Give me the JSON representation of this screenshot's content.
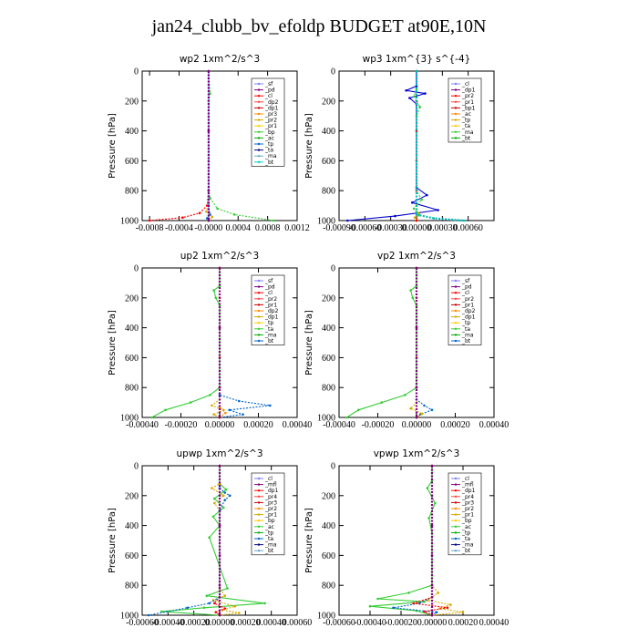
{
  "title": "jan24_clubb_bv_efoldp  BUDGET at90E,10N",
  "chart_data": [
    {
      "type": "line",
      "title": "wp2   1xm^2/s^3",
      "ylabel": "Pressure [hPa]",
      "xlim": [
        -0.0009,
        0.0012
      ],
      "ylim": [
        1000,
        0
      ],
      "xticks": [
        -0.0008,
        -0.0004,
        0.0,
        0.0004,
        0.0008,
        0.0012
      ],
      "xtick_labels": [
        "-0.0008",
        "-0.0004",
        "-0.0000",
        "0.0004",
        "0.0008",
        "0.0012"
      ],
      "yticks": [
        0,
        200,
        400,
        600,
        800,
        1000
      ],
      "legend": [
        "_sf",
        "_pd",
        "_cl",
        "_dp2",
        "_dp1",
        "_pr3",
        "_pr2",
        "_pr1",
        "_bp",
        "_ac",
        "_tp",
        "_ta",
        "_ma",
        "_bt"
      ],
      "series": [
        {
          "color": "#7f7fff",
          "x": [
            0,
            0,
            0,
            0,
            0,
            0
          ],
          "y": [
            0,
            200,
            400,
            600,
            800,
            1000
          ]
        },
        {
          "color": "#ff0000",
          "x": [
            0,
            0,
            -2e-05,
            -0.00012,
            -0.00035,
            -0.0008
          ],
          "y": [
            0,
            800,
            900,
            950,
            980,
            1000
          ]
        },
        {
          "color": "#33cc33",
          "x": [
            0,
            2e-05,
            0,
            0,
            2e-05,
            0.00012,
            0.00035,
            0.00088
          ],
          "y": [
            0,
            150,
            200,
            800,
            850,
            920,
            960,
            1000
          ]
        },
        {
          "color": "#d4aa00",
          "x": [
            0,
            0,
            -3e-05,
            5e-05,
            0
          ],
          "y": [
            0,
            880,
            940,
            975,
            1000
          ]
        },
        {
          "color": "#0066cc",
          "x": [
            0,
            0,
            2e-05,
            -2e-05,
            0
          ],
          "y": [
            0,
            900,
            960,
            985,
            1000
          ]
        },
        {
          "color": "#800080",
          "x": [
            0,
            0,
            0,
            0
          ],
          "y": [
            0,
            400,
            800,
            1000
          ]
        }
      ]
    },
    {
      "type": "line",
      "title": "wp3   1xm^{3} s^{-4}",
      "ylabel": "Pressure [hPa]",
      "xlim": [
        -0.0009,
        0.0009
      ],
      "ylim": [
        1000,
        0
      ],
      "xticks": [
        -0.0009,
        -0.0006,
        -0.0003,
        0.0,
        0.0003,
        0.0006
      ],
      "xtick_labels": [
        "-0.00090",
        "-0.00060",
        "-0.00030",
        "0.00000",
        "0.00030",
        "0.00060"
      ],
      "yticks": [
        0,
        200,
        400,
        600,
        800,
        1000
      ],
      "legend": [
        "_cl",
        "_dp1",
        "_pr2",
        "_pr1",
        "_bp1",
        "_ac",
        "_tp",
        "_ta",
        "_ma",
        "_bt"
      ],
      "series": [
        {
          "color": "#0000cc",
          "x": [
            0,
            0,
            -0.00012,
            0.0001,
            -8e-05,
            0,
            0,
            0.00012,
            -5e-05,
            0.00025,
            -0.00025,
            -0.0008
          ],
          "y": [
            0,
            100,
            130,
            150,
            180,
            220,
            780,
            830,
            880,
            930,
            970,
            1000
          ]
        },
        {
          "color": "#33cc33",
          "x": [
            0,
            0,
            -3e-05,
            4e-05,
            0,
            0,
            6e-05,
            -3e-05,
            3e-05,
            0
          ],
          "y": [
            0,
            120,
            170,
            240,
            300,
            800,
            860,
            920,
            960,
            1000
          ]
        },
        {
          "color": "#d4aa00",
          "x": [
            0,
            0,
            2e-05,
            -2e-05,
            0
          ],
          "y": [
            0,
            900,
            950,
            980,
            1000
          ]
        },
        {
          "color": "#ff0000",
          "x": [
            0,
            0,
            0,
            0,
            0,
            0
          ],
          "y": [
            0,
            200,
            400,
            600,
            800,
            1000
          ]
        },
        {
          "color": "#00bbbb",
          "x": [
            0,
            0,
            0.0002,
            0.00055
          ],
          "y": [
            0,
            960,
            985,
            1000
          ]
        }
      ]
    },
    {
      "type": "line",
      "title": "up2   1xm^2/s^3",
      "ylabel": "Pressure [hPa]",
      "xlim": [
        -0.0004,
        0.0004
      ],
      "ylim": [
        1000,
        0
      ],
      "xticks": [
        -0.0004,
        -0.0002,
        0.0,
        0.0002,
        0.0004
      ],
      "xtick_labels": [
        "-0.00040",
        "-0.00020",
        "0.00000",
        "0.00020",
        "0.00040"
      ],
      "yticks": [
        0,
        200,
        400,
        600,
        800,
        1000
      ],
      "legend": [
        "_sf",
        "_pd",
        "_cl",
        "_pr2",
        "_pr1",
        "_dp2",
        "_dp1",
        "_tp",
        "_ta",
        "_ma",
        "_bt"
      ],
      "series": [
        {
          "color": "#33cc33",
          "x": [
            0,
            0,
            -3e-05,
            -2e-05,
            0,
            0,
            -5e-05,
            -0.00015,
            -0.00028,
            -0.00035
          ],
          "y": [
            0,
            120,
            150,
            200,
            250,
            800,
            850,
            900,
            950,
            1000
          ]
        },
        {
          "color": "#0066cc",
          "x": [
            0,
            0,
            0.0001,
            0.00026,
            5e-05,
            0.00012,
            0
          ],
          "y": [
            0,
            850,
            890,
            920,
            950,
            980,
            1000
          ]
        },
        {
          "color": "#d4aa00",
          "x": [
            0,
            0,
            -4e-05,
            2e-05,
            -3e-05,
            0
          ],
          "y": [
            0,
            880,
            920,
            950,
            980,
            1000
          ]
        },
        {
          "color": "#ff8800",
          "x": [
            0,
            0,
            3e-05,
            0
          ],
          "y": [
            0,
            930,
            970,
            1000
          ]
        },
        {
          "color": "#ff0000",
          "x": [
            0,
            0,
            0,
            0,
            0,
            0
          ],
          "y": [
            0,
            200,
            400,
            600,
            800,
            1000
          ]
        },
        {
          "color": "#800080",
          "x": [
            0,
            0,
            0,
            0
          ],
          "y": [
            0,
            400,
            800,
            1000
          ]
        }
      ]
    },
    {
      "type": "line",
      "title": "vp2   1xm^2/s^3",
      "ylabel": "Pressure [hPa]",
      "xlim": [
        -0.0004,
        0.0004
      ],
      "ylim": [
        1000,
        0
      ],
      "xticks": [
        -0.0004,
        -0.0002,
        0.0,
        0.0002,
        0.0004
      ],
      "xtick_labels": [
        "-0.00040",
        "-0.00020",
        "0.00000",
        "0.00020",
        "0.00040"
      ],
      "yticks": [
        0,
        200,
        400,
        600,
        800,
        1000
      ],
      "legend": [
        "_sf",
        "_pd",
        "_cl",
        "_pr2",
        "_pr1",
        "_dp2",
        "_dp1",
        "_tp",
        "_ta",
        "_ma",
        "_bt"
      ],
      "series": [
        {
          "color": "#33cc33",
          "x": [
            0,
            0,
            -3e-05,
            -2e-05,
            0,
            0,
            -6e-05,
            -0.00018,
            -0.0003,
            -0.00036
          ],
          "y": [
            0,
            120,
            150,
            200,
            250,
            800,
            850,
            900,
            950,
            1000
          ]
        },
        {
          "color": "#0066cc",
          "x": [
            0,
            0,
            4e-05,
            8e-05,
            2e-05,
            0
          ],
          "y": [
            0,
            880,
            920,
            950,
            980,
            1000
          ]
        },
        {
          "color": "#d4aa00",
          "x": [
            0,
            0,
            -3e-05,
            3e-05,
            0
          ],
          "y": [
            0,
            900,
            940,
            975,
            1000
          ]
        },
        {
          "color": "#ff0000",
          "x": [
            0,
            0,
            0,
            0,
            0,
            0
          ],
          "y": [
            0,
            200,
            400,
            600,
            800,
            1000
          ]
        },
        {
          "color": "#800080",
          "x": [
            0,
            0,
            0,
            0
          ],
          "y": [
            0,
            400,
            800,
            1000
          ]
        }
      ]
    },
    {
      "type": "line",
      "title": "upwp   1xm^2/s^3",
      "ylabel": "Pressure [hPa]",
      "xlim": [
        -0.0006,
        0.0006
      ],
      "ylim": [
        1000,
        0
      ],
      "xticks": [
        -0.0006,
        -0.0004,
        -0.0002,
        0.0,
        0.0002,
        0.0004,
        0.0006
      ],
      "xtick_labels": [
        "-0.00060",
        "-0.00040",
        "-0.00020",
        "0.00000",
        "0.00020",
        "0.00040",
        "0.00060"
      ],
      "yticks": [
        0,
        200,
        400,
        600,
        800,
        1000
      ],
      "legend": [
        "_cl",
        "_mfl",
        "_dp1",
        "_pr4",
        "_pr3",
        "_pr2",
        "_pr1",
        "_bp",
        "_ac",
        "_tp",
        "_ta",
        "_ma",
        "_bt"
      ],
      "series": [
        {
          "color": "#33cc33",
          "x": [
            0,
            0,
            5e-05,
            -4e-05,
            3e-05,
            -5e-05,
            0,
            -8e-05,
            6e-05,
            -0.0001,
            0.00035,
            -0.00012,
            -0.00045,
            0
          ],
          "y": [
            0,
            120,
            160,
            220,
            280,
            340,
            400,
            480,
            820,
            870,
            920,
            950,
            975,
            1000
          ]
        },
        {
          "color": "#d4aa00",
          "x": [
            0,
            0,
            -6e-05,
            3e-05,
            -4e-05,
            0,
            0,
            4e-05,
            -5e-05,
            0.00012,
            2e-05,
            0.00015,
            0
          ],
          "y": [
            0,
            120,
            150,
            200,
            250,
            300,
            820,
            870,
            900,
            940,
            965,
            985,
            1000
          ]
        },
        {
          "color": "#0066cc",
          "x": [
            0,
            0,
            4e-05,
            8e-05,
            4e-05,
            0,
            0,
            -8e-05,
            -0.00025,
            -0.00055
          ],
          "y": [
            0,
            150,
            180,
            200,
            230,
            300,
            880,
            920,
            950,
            1000
          ]
        },
        {
          "color": "#ff0000",
          "x": [
            0,
            0,
            -4e-05,
            4e-05,
            -3e-05,
            0
          ],
          "y": [
            0,
            880,
            920,
            955,
            980,
            1000
          ]
        },
        {
          "color": "#800080",
          "x": [
            0,
            0,
            0,
            0,
            0,
            0
          ],
          "y": [
            0,
            200,
            400,
            600,
            800,
            1000
          ]
        }
      ]
    },
    {
      "type": "line",
      "title": "vpwp   1xm^2/s^3",
      "ylabel": "Pressure [hPa]",
      "xlim": [
        -0.0006,
        0.0004
      ],
      "ylim": [
        1000,
        0
      ],
      "xticks": [
        -0.0006,
        -0.0004,
        -0.0002,
        0.0,
        0.0002,
        0.0004
      ],
      "xtick_labels": [
        "-0.00060",
        "-0.00040",
        "-0.00020",
        "0.00000",
        "0.00020",
        "0.00040"
      ],
      "yticks": [
        0,
        200,
        400,
        600,
        800,
        1000
      ],
      "legend": [
        "_cl",
        "_mfl",
        "_dp1",
        "_pr4",
        "_pr3",
        "_pr2",
        "_pr1",
        "_bp",
        "_ac",
        "_tp",
        "_ta",
        "_ma",
        "_bt"
      ],
      "series": [
        {
          "color": "#33cc33",
          "x": [
            0,
            0,
            -3e-05,
            2e-05,
            -2e-05,
            0,
            0,
            -0.00015,
            -0.00035,
            -5e-05,
            -0.0004,
            -0.0001,
            0
          ],
          "y": [
            0,
            100,
            150,
            250,
            350,
            450,
            800,
            850,
            890,
            910,
            940,
            970,
            1000
          ]
        },
        {
          "color": "#d4aa00",
          "x": [
            0,
            0,
            4e-05,
            -3e-05,
            0.00012,
            5e-05,
            0.0002,
            0
          ],
          "y": [
            0,
            800,
            850,
            900,
            930,
            955,
            980,
            1000
          ]
        },
        {
          "color": "#0066cc",
          "x": [
            0,
            0,
            -8e-05,
            -0.00025,
            3e-05,
            0
          ],
          "y": [
            0,
            880,
            920,
            950,
            980,
            1000
          ]
        },
        {
          "color": "#ff0000",
          "x": [
            0,
            0,
            -0.00012,
            0.0001,
            -5e-05,
            0
          ],
          "y": [
            0,
            880,
            920,
            950,
            975,
            1000
          ]
        },
        {
          "color": "#800080",
          "x": [
            0,
            0,
            0,
            0,
            0,
            0
          ],
          "y": [
            0,
            200,
            400,
            600,
            800,
            1000
          ]
        }
      ]
    }
  ]
}
